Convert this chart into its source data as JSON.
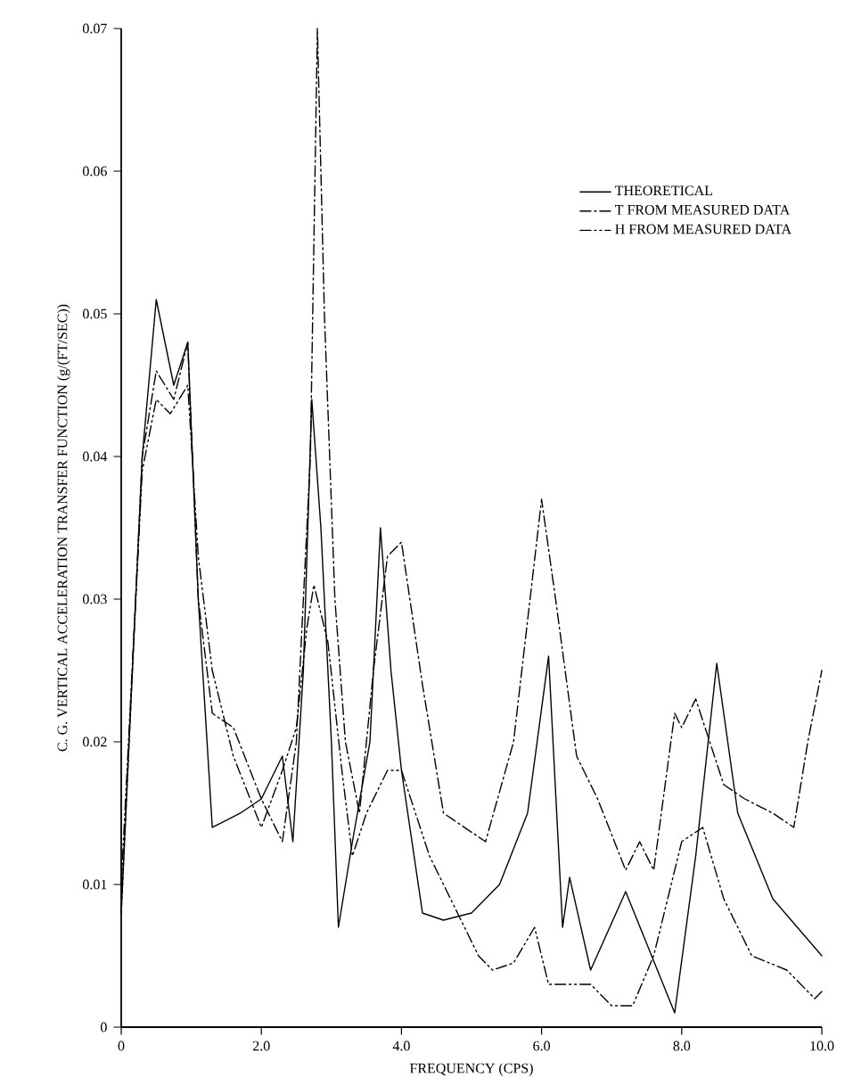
{
  "chart_data": {
    "type": "line",
    "xlabel": "FREQUENCY (CPS)",
    "ylabel": "C. G. VERTICAL ACCELERATION TRANSFER FUNCTION (g/(FT/SEC))",
    "xlim": [
      0,
      10
    ],
    "ylim": [
      0,
      0.07
    ],
    "xticks": [
      {
        "value": 0,
        "label": "0"
      },
      {
        "value": 2,
        "label": "2.0"
      },
      {
        "value": 4,
        "label": "4.0"
      },
      {
        "value": 6,
        "label": "6.0"
      },
      {
        "value": 8,
        "label": "8.0"
      },
      {
        "value": 10,
        "label": "10.0"
      }
    ],
    "yticks": [
      0,
      0.01,
      0.02,
      0.03,
      0.04,
      0.05,
      0.06,
      0.07
    ],
    "grid": false,
    "legend": "top right",
    "marker": "none",
    "series": [
      {
        "name": "THEORETICAL",
        "color": "#000000",
        "line_style": "solid",
        "x": [
          0,
          0.3,
          0.5,
          0.75,
          0.95,
          1.1,
          1.3,
          1.7,
          2.0,
          2.3,
          2.45,
          2.6,
          2.72,
          2.85,
          3.0,
          3.1,
          3.3,
          3.55,
          3.7,
          3.85,
          4.0,
          4.3,
          4.6,
          5.0,
          5.4,
          5.8,
          6.1,
          6.3,
          6.4,
          6.7,
          7.2,
          7.9,
          8.2,
          8.5,
          8.8,
          9.3,
          10
        ],
        "values": [
          0.008,
          0.04,
          0.051,
          0.045,
          0.048,
          0.03,
          0.014,
          0.015,
          0.016,
          0.019,
          0.013,
          0.025,
          0.044,
          0.035,
          0.02,
          0.007,
          0.013,
          0.02,
          0.035,
          0.025,
          0.018,
          0.008,
          0.0075,
          0.008,
          0.01,
          0.015,
          0.026,
          0.007,
          0.0105,
          0.004,
          0.0095,
          0.001,
          0.012,
          0.0255,
          0.015,
          0.009,
          0.005
        ]
      },
      {
        "name": "T FROM MEASURED DATA",
        "color": "#000000",
        "line_style": "dashdot",
        "x": [
          0,
          0.3,
          0.5,
          0.75,
          0.95,
          1.1,
          1.3,
          1.6,
          2.0,
          2.3,
          2.5,
          2.7,
          2.8,
          2.9,
          3.05,
          3.2,
          3.4,
          3.6,
          3.8,
          4.0,
          4.3,
          4.6,
          5.2,
          5.6,
          6.0,
          6.2,
          6.5,
          6.8,
          7.2,
          7.4,
          7.6,
          7.9,
          8.0,
          8.2,
          8.6,
          8.9,
          9.3,
          9.6,
          9.8,
          10
        ],
        "values": [
          0.008,
          0.04,
          0.046,
          0.044,
          0.048,
          0.03,
          0.022,
          0.021,
          0.016,
          0.013,
          0.02,
          0.04,
          0.07,
          0.05,
          0.03,
          0.02,
          0.015,
          0.025,
          0.033,
          0.034,
          0.024,
          0.015,
          0.013,
          0.02,
          0.037,
          0.03,
          0.019,
          0.016,
          0.011,
          0.013,
          0.011,
          0.022,
          0.021,
          0.023,
          0.017,
          0.016,
          0.015,
          0.014,
          0.02,
          0.025
        ]
      },
      {
        "name": "H FROM MEASURED DATA",
        "color": "#000000",
        "line_style": "dashdotdot",
        "x": [
          0,
          0.3,
          0.5,
          0.7,
          0.95,
          1.1,
          1.3,
          1.6,
          2.0,
          2.3,
          2.5,
          2.65,
          2.75,
          2.95,
          3.15,
          3.3,
          3.5,
          3.8,
          4.0,
          4.4,
          4.8,
          5.1,
          5.3,
          5.6,
          5.9,
          6.1,
          6.7,
          7.0,
          7.3,
          7.6,
          8.0,
          8.3,
          8.6,
          9.0,
          9.5,
          9.9,
          10
        ],
        "values": [
          0.01,
          0.039,
          0.044,
          0.043,
          0.045,
          0.033,
          0.025,
          0.019,
          0.014,
          0.018,
          0.021,
          0.028,
          0.031,
          0.027,
          0.018,
          0.012,
          0.015,
          0.018,
          0.018,
          0.012,
          0.008,
          0.005,
          0.004,
          0.0045,
          0.007,
          0.003,
          0.003,
          0.0015,
          0.0015,
          0.005,
          0.013,
          0.014,
          0.009,
          0.005,
          0.004,
          0.002,
          0.0025
        ]
      }
    ]
  }
}
